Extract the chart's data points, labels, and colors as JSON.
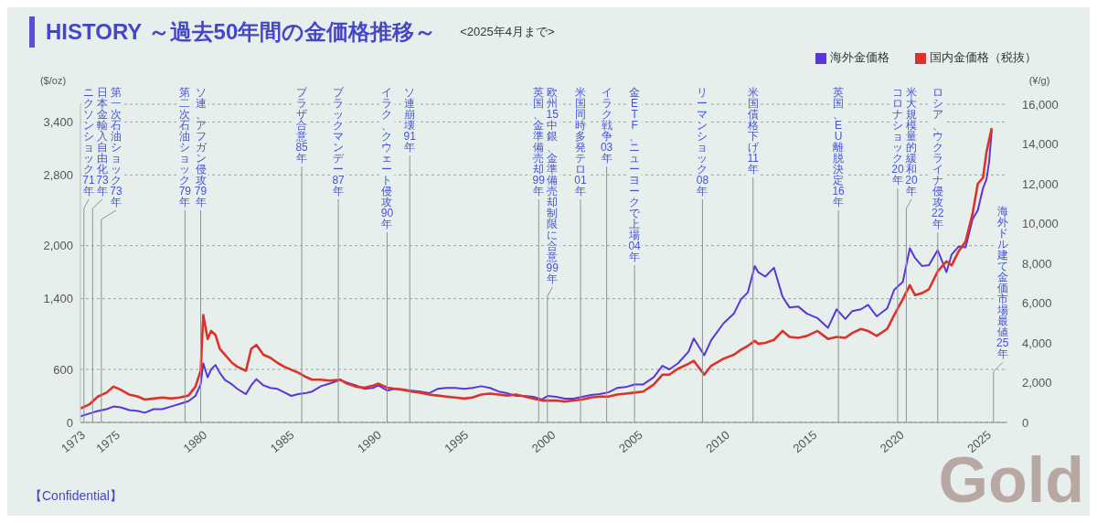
{
  "chart_data": {
    "type": "line",
    "title": "HISTORY ～過去50年間の金価格推移～",
    "subtitle": "<2025年4月まで>",
    "ylabel": "($/oz)",
    "y2label": "(¥/g)",
    "x": [
      1973,
      1973.5,
      1974,
      1974.5,
      1974.9,
      1975.3,
      1975.8,
      1976.3,
      1976.7,
      1977.2,
      1977.7,
      1978.2,
      1978.7,
      1979.2,
      1979.6,
      1979.9,
      1980.05,
      1980.3,
      1980.5,
      1980.75,
      1981,
      1981.3,
      1981.7,
      1982,
      1982.5,
      1982.8,
      1983.1,
      1983.5,
      1983.9,
      1984.3,
      1984.7,
      1985.1,
      1985.5,
      1985.9,
      1986.3,
      1986.8,
      1987.3,
      1987.9,
      1988.3,
      1988.8,
      1989.3,
      1989.8,
      1990.1,
      1990.6,
      1991,
      1991.5,
      1992,
      1992.5,
      1993,
      1993.5,
      1994,
      1994.5,
      1995,
      1995.5,
      1996,
      1996.5,
      1997,
      1997.5,
      1998,
      1998.5,
      1999,
      1999.5,
      1999.8,
      2000.3,
      2000.8,
      2001.3,
      2001.8,
      2002.3,
      2002.8,
      2003.3,
      2003.8,
      2004.3,
      2004.8,
      2005.3,
      2005.9,
      2006.4,
      2006.8,
      2007.3,
      2007.9,
      2008.2,
      2008.8,
      2009.2,
      2009.9,
      2010.5,
      2010.9,
      2011.3,
      2011.7,
      2011.9,
      2012.3,
      2012.8,
      2013.3,
      2013.7,
      2014.2,
      2014.7,
      2015.3,
      2015.9,
      2016.4,
      2016.9,
      2017.3,
      2017.8,
      2018.2,
      2018.7,
      2019.3,
      2019.7,
      2020.2,
      2020.6,
      2020.9,
      2021.3,
      2021.7,
      2022.2,
      2022.7,
      2023,
      2023.4,
      2023.8,
      2024.2,
      2024.5,
      2024.8,
      2025,
      2025.15,
      2025.3
    ],
    "series": [
      {
        "name": "海外金価格",
        "color": "#5a36d8",
        "values": [
          70,
          100,
          130,
          150,
          180,
          170,
          140,
          130,
          110,
          150,
          150,
          180,
          210,
          240,
          300,
          430,
          670,
          510,
          600,
          650,
          560,
          480,
          430,
          380,
          320,
          420,
          490,
          420,
          390,
          380,
          340,
          300,
          320,
          330,
          350,
          410,
          440,
          480,
          450,
          420,
          380,
          390,
          420,
          360,
          380,
          370,
          360,
          350,
          330,
          380,
          390,
          390,
          380,
          390,
          410,
          390,
          350,
          330,
          300,
          300,
          290,
          260,
          300,
          290,
          270,
          270,
          290,
          310,
          320,
          340,
          390,
          400,
          430,
          430,
          510,
          640,
          600,
          670,
          800,
          950,
          760,
          930,
          1120,
          1230,
          1390,
          1470,
          1770,
          1700,
          1650,
          1750,
          1420,
          1300,
          1310,
          1230,
          1180,
          1070,
          1280,
          1170,
          1260,
          1280,
          1330,
          1200,
          1290,
          1500,
          1590,
          1970,
          1860,
          1770,
          1780,
          1950,
          1700,
          1900,
          1990,
          1980,
          2300,
          2400,
          2650,
          2750,
          2950,
          3300
        ]
      },
      {
        "name": "国内金価格（税抜）",
        "color": "#e0302a",
        "axis": "y2",
        "values": [
          700,
          900,
          1300,
          1500,
          1800,
          1650,
          1400,
          1300,
          1150,
          1200,
          1250,
          1200,
          1250,
          1350,
          1800,
          2600,
          5400,
          4200,
          4600,
          4400,
          3700,
          3400,
          3000,
          2800,
          2600,
          3700,
          3900,
          3400,
          3250,
          3000,
          2800,
          2650,
          2500,
          2300,
          2150,
          2150,
          2100,
          2150,
          1950,
          1800,
          1750,
          1850,
          1950,
          1750,
          1700,
          1650,
          1550,
          1500,
          1400,
          1350,
          1300,
          1250,
          1200,
          1250,
          1400,
          1450,
          1400,
          1350,
          1400,
          1300,
          1200,
          1100,
          1100,
          1100,
          1050,
          1100,
          1150,
          1250,
          1300,
          1300,
          1400,
          1450,
          1500,
          1550,
          1900,
          2400,
          2400,
          2700,
          2950,
          3100,
          2400,
          2850,
          3200,
          3400,
          3650,
          3850,
          4100,
          3950,
          4000,
          4150,
          4600,
          4300,
          4250,
          4350,
          4600,
          4200,
          4300,
          4250,
          4500,
          4700,
          4600,
          4350,
          4700,
          5400,
          6200,
          6900,
          6400,
          6500,
          6700,
          7600,
          8100,
          7900,
          8600,
          9100,
          10500,
          12000,
          12300,
          13600,
          14200,
          14800
        ]
      }
    ],
    "xlim": [
      1973,
      2026.2
    ],
    "xticks": [
      1973,
      1975,
      1980,
      1985,
      1990,
      1995,
      2000,
      2005,
      2010,
      2015,
      2020,
      2025
    ],
    "ylim": [
      0,
      3600
    ],
    "yticks": [
      0,
      600,
      {
        "value": 1400,
        "label": "1,400"
      },
      {
        "value": 2000,
        "label": "2,000"
      },
      {
        "value": 2800,
        "label": "2,800"
      },
      {
        "value": 3400,
        "label": "3,400"
      }
    ],
    "y2lim": [
      0,
      16000
    ],
    "y2ticks": [
      0,
      {
        "value": 2000,
        "label": "2,000"
      },
      {
        "value": 4000,
        "label": "4,000"
      },
      {
        "value": 6000,
        "label": "6,000"
      },
      {
        "value": 8000,
        "label": "8,000"
      },
      {
        "value": 10000,
        "label": "10,000"
      },
      {
        "value": 12000,
        "label": "12,000"
      },
      {
        "value": 14000,
        "label": "14,000"
      },
      {
        "value": 16000,
        "label": "16,000"
      }
    ],
    "grid": "y",
    "legend": "top right",
    "marker": "none",
    "ref_lines": [
      {
        "axis": "x",
        "value": 1973.2,
        "label": "ニクソンショック71年"
      },
      {
        "axis": "x",
        "value": 1973.7,
        "label": "日本金輸入自由化73年"
      },
      {
        "axis": "x",
        "value": 1974.2,
        "label": "第一次石油ショック73年"
      },
      {
        "axis": "x",
        "value": 1979,
        "label": "第二次石油ショック79年"
      },
      {
        "axis": "x",
        "value": 1979.9,
        "label": "ソ連、アフガン侵攻79年"
      },
      {
        "axis": "x",
        "value": 1985.7,
        "label": "プラザ合意85年"
      },
      {
        "axis": "x",
        "value": 1987.8,
        "label": "ブラックマンデー87年"
      },
      {
        "axis": "x",
        "value": 1990.6,
        "label": "イラク、クウェート侵攻90年"
      },
      {
        "axis": "x",
        "value": 1991.9,
        "label": "ソ連崩壊91年"
      },
      {
        "axis": "x",
        "value": 1999.3,
        "label": "英国、金準備売却99年"
      },
      {
        "axis": "x",
        "value": 1999.8,
        "label": "欧州15中銀、金準備売却制限に合意99年"
      },
      {
        "axis": "x",
        "value": 2001.7,
        "label": "米国同時多発テロ01年"
      },
      {
        "axis": "x",
        "value": 2003.2,
        "label": "イラク戦争03年"
      },
      {
        "axis": "x",
        "value": 2004.8,
        "label": "金ETF、ニューヨークで上場04年"
      },
      {
        "axis": "x",
        "value": 2008.7,
        "label": "リーマンショック08年"
      },
      {
        "axis": "x",
        "value": 2011.6,
        "label": "米国債格下げ11年"
      },
      {
        "axis": "x",
        "value": 2016.5,
        "label": "英国、EU離脱決定16年"
      },
      {
        "axis": "x",
        "value": 2019.9,
        "label": "コロナショック20年"
      },
      {
        "axis": "x",
        "value": 2020.4,
        "label": "米大規模量的緩和20年"
      },
      {
        "axis": "x",
        "value": 2022.2,
        "label": "ロシア、ウクライナ侵攻22年"
      },
      {
        "axis": "x",
        "value": 2025.4,
        "label": "海外ドル建て金価市場最値25年"
      }
    ],
    "annotations": [
      "【Confidential】",
      "Gold"
    ]
  }
}
